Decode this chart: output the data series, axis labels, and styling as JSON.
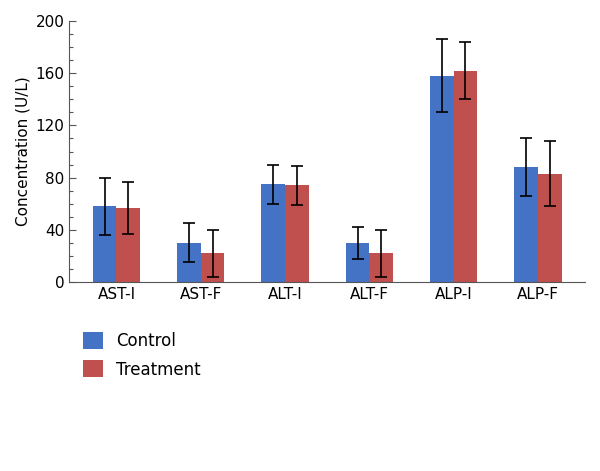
{
  "categories": [
    "AST-I",
    "AST-F",
    "ALT-I",
    "ALT-F",
    "ALP-I",
    "ALP-F"
  ],
  "control_values": [
    58,
    30,
    75,
    30,
    158,
    88
  ],
  "treatment_values": [
    57,
    22,
    74,
    22,
    162,
    83
  ],
  "control_errors": [
    22,
    15,
    15,
    12,
    28,
    22
  ],
  "treatment_errors": [
    20,
    18,
    15,
    18,
    22,
    25
  ],
  "control_color": "#4472C4",
  "treatment_color": "#C0504D",
  "ylabel": "Concentration (U/L)",
  "ylim": [
    0,
    200
  ],
  "yticks": [
    0,
    40,
    80,
    120,
    160,
    200
  ],
  "bar_width": 0.28,
  "legend_labels": [
    "Control",
    "Treatment"
  ],
  "background_color": "#ffffff",
  "capsize": 4,
  "elinewidth": 1.2,
  "ecapthick": 1.2,
  "spine_color": "#555555",
  "tick_fontsize": 11,
  "label_fontsize": 11,
  "legend_fontsize": 12,
  "minor_tick_interval": 10
}
